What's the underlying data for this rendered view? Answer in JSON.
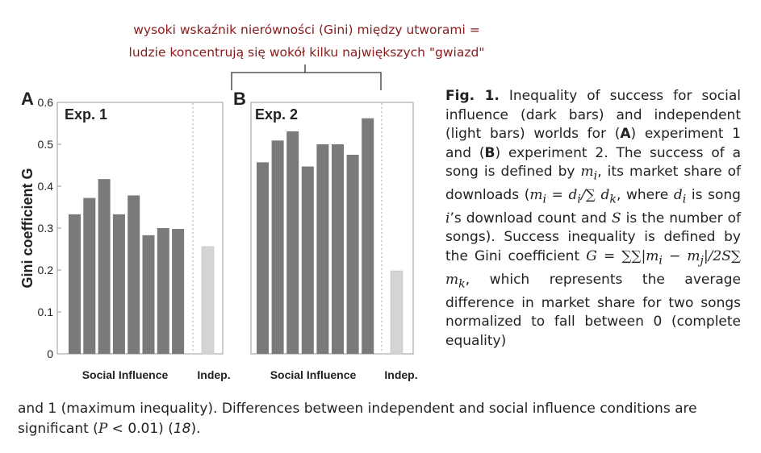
{
  "annotation": {
    "line1": "wysoki wskaźnik nierówności (Gini) między utworami =",
    "line2": "ludzie koncentrują się wokół kilku największych \"gwiazd\""
  },
  "chart_data": [
    {
      "type": "bar",
      "panel_label": "A",
      "title": "Exp. 1",
      "ylabel": "Gini coefficient G",
      "ylim": [
        0,
        0.6
      ],
      "yticks": [
        "0",
        "0.1",
        "0.2",
        "0.3",
        "0.4",
        "0.5",
        "0.6"
      ],
      "group_labels": [
        "Social Influence",
        "Indep."
      ],
      "series": [
        {
          "name": "Social Influence",
          "color": "#7a7a7a",
          "values": [
            0.333,
            0.372,
            0.417,
            0.333,
            0.378,
            0.283,
            0.3,
            0.298
          ]
        },
        {
          "name": "Indep.",
          "color": "#d4d4d4",
          "values": [
            0.256
          ]
        }
      ]
    },
    {
      "type": "bar",
      "panel_label": "B",
      "title": "Exp. 2",
      "ylabel": "",
      "ylim": [
        0,
        0.6
      ],
      "group_labels": [
        "Social Influence",
        "Indep."
      ],
      "series": [
        {
          "name": "Social Influence",
          "color": "#7a7a7a",
          "values": [
            0.457,
            0.509,
            0.531,
            0.447,
            0.5,
            0.5,
            0.475,
            0.562
          ]
        },
        {
          "name": "Indep.",
          "color": "#d4d4d4",
          "values": [
            0.198
          ]
        }
      ]
    }
  ],
  "caption": {
    "fig_label": "Fig. 1.",
    "text_1": "Inequality of success for social influence (dark bars) and independent (light bars) worlds for (",
    "bold_a": "A",
    "text_2": ") experiment 1 and (",
    "bold_b": "B",
    "text_3": ") experiment 2. The success of a song is defined by ",
    "m_i": "m",
    "sub_i": "i",
    "text_4": ", its market share of downloads (",
    "formula_m": "m",
    "formula_rest": " = d",
    "formula_div": "/∑",
    "formula_dk": " d",
    "sub_k": "k",
    "text_5": ", where ",
    "d_i": "d",
    "text_6": " is song ",
    "song_i": "i",
    "text_7": "’s download count and ",
    "s_var": "S",
    "text_8": " is the number of songs). Success inequality is defined by the Gini coefficient ",
    "gini_formula": "G = ∑∑|m",
    "gini_mid": " − m",
    "sub_j": "j",
    "gini_end": "|/2S∑ m",
    "text_9": ", which represents the average difference in market share for two songs normalized to fall between 0 (complete equality)",
    "bottom_1": "and 1 (maximum inequality). Differences between independent and social influence conditions are significant (",
    "p_var": "P",
    "p_val": " < 0.01) (",
    "ref": "18",
    "bottom_2": ")."
  }
}
